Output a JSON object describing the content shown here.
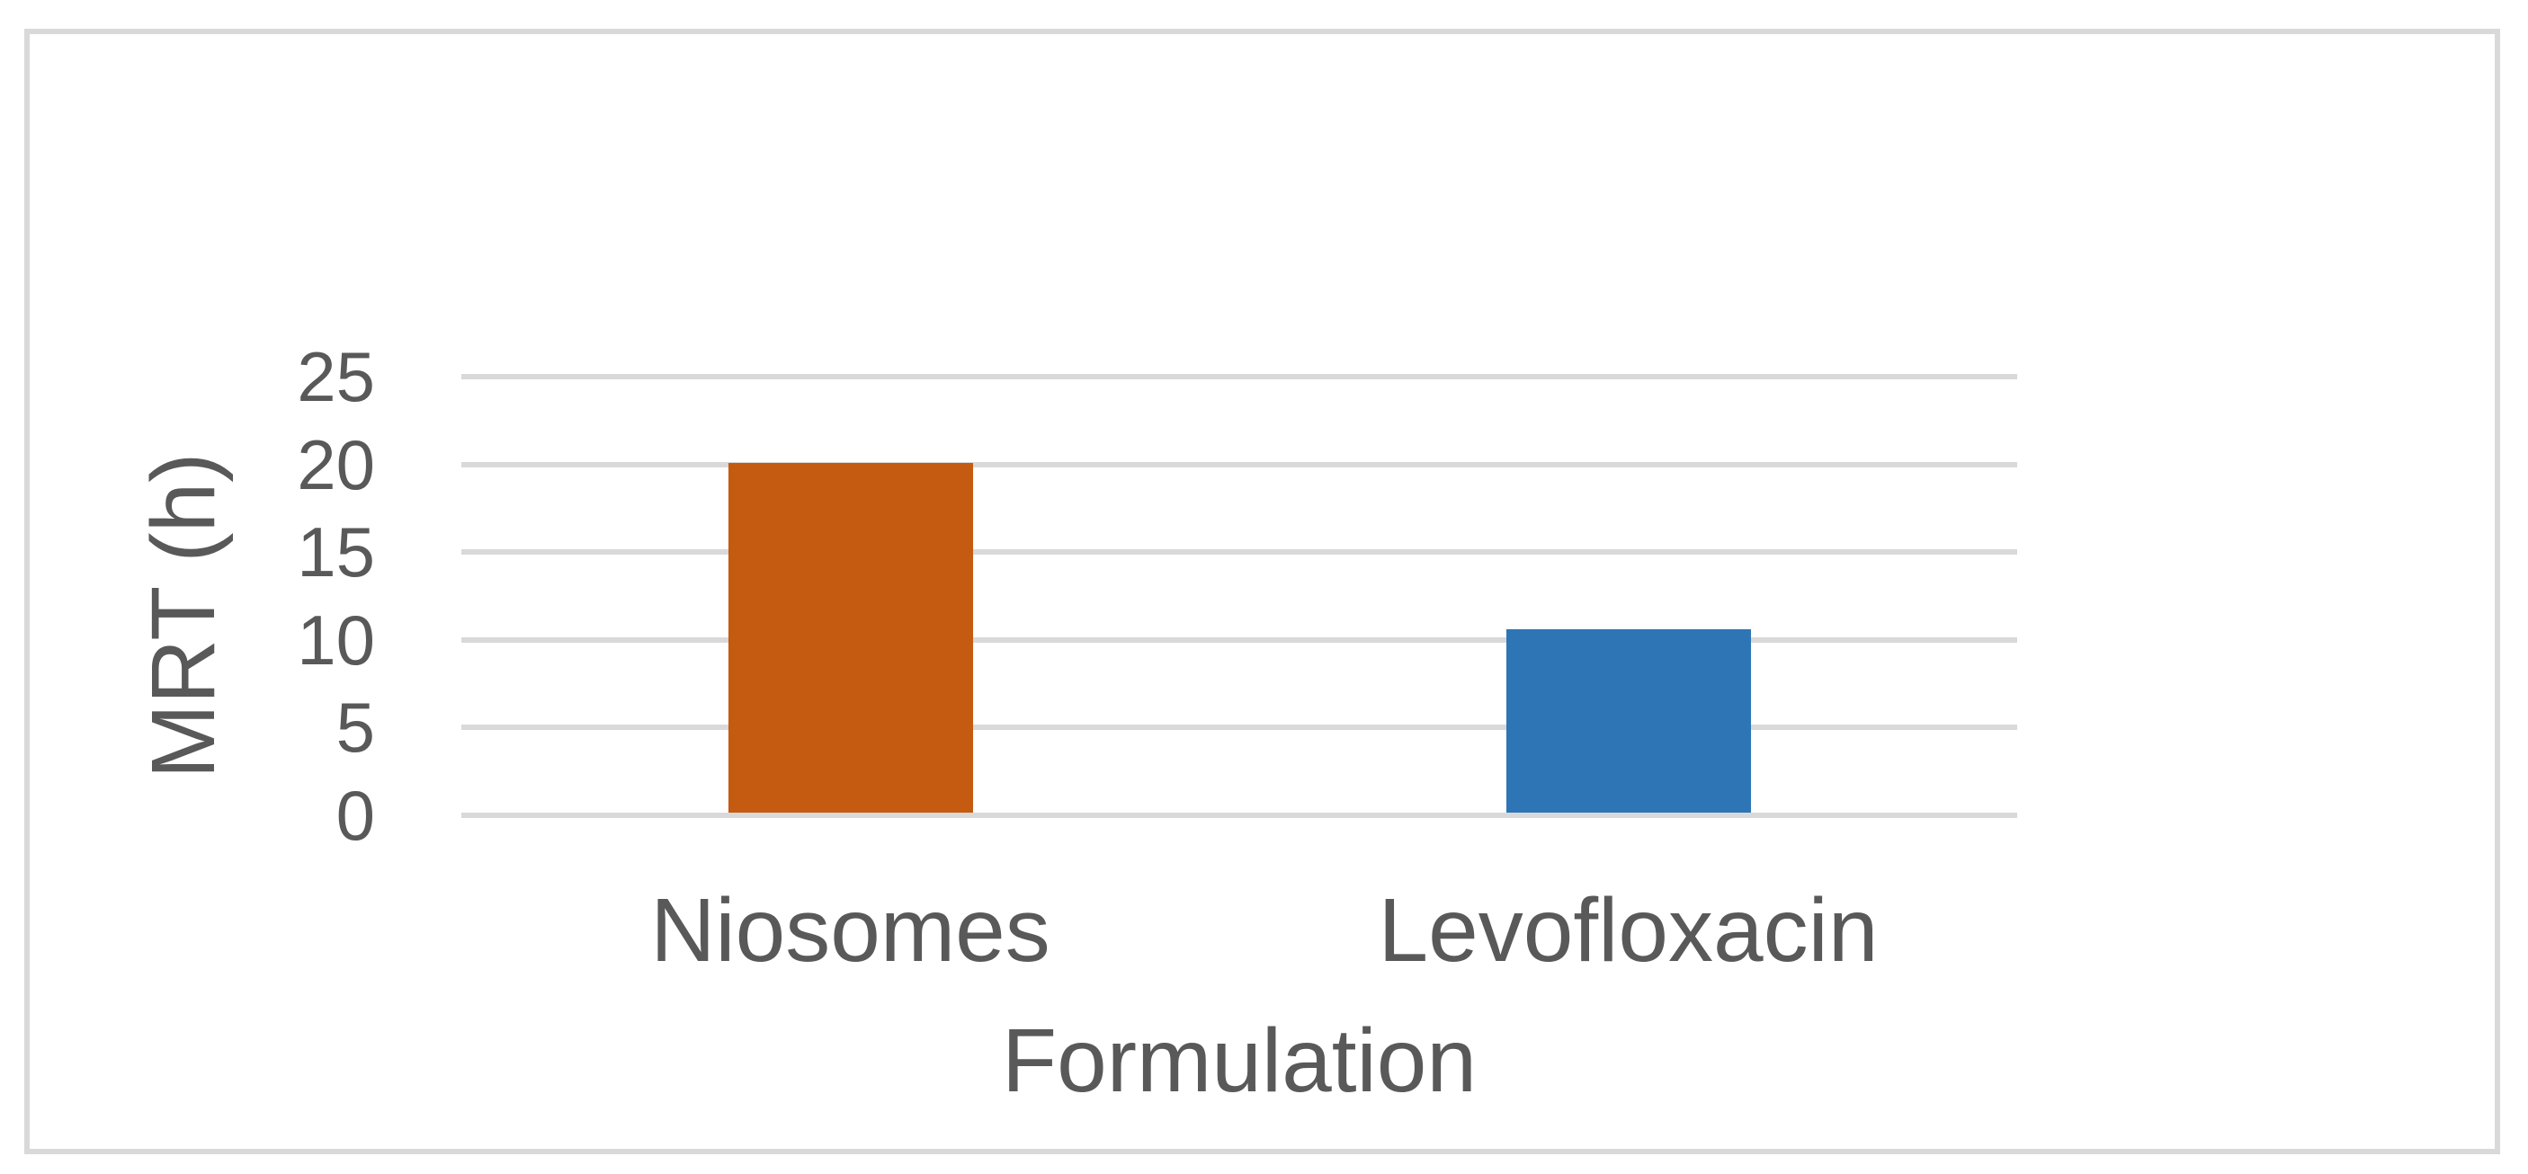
{
  "figure": {
    "background_color": "#FFFFFF",
    "border_color": "#D9D9D9",
    "text_color": "#595959",
    "gridline_color": "#D9D9D9"
  },
  "chart_data": {
    "type": "bar",
    "title": "",
    "categories": [
      "Niosomes",
      "Levofloxacin"
    ],
    "values": [
      20.1,
      10.6
    ],
    "bar_colors": [
      "#C55A11",
      "#2E75B6"
    ],
    "xlabel": "Formulation",
    "ylabel": "MRT (h)",
    "ylim": [
      0,
      25
    ],
    "yticks": [
      0,
      5,
      10,
      15,
      20,
      25
    ],
    "grid": "horizontal",
    "legend": "none"
  }
}
